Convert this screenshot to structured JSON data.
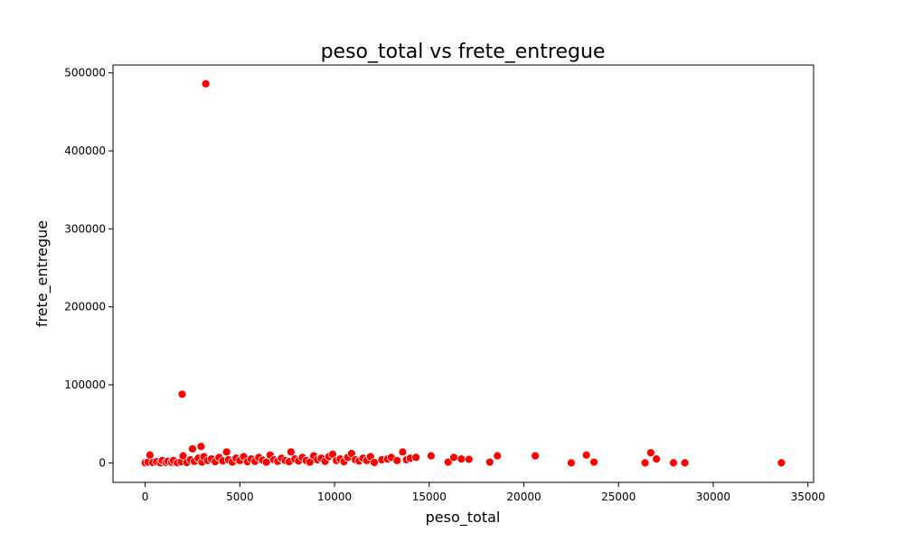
{
  "chart_data": {
    "type": "scatter",
    "title": "peso_total vs frete_entregue",
    "xlabel": "peso_total",
    "ylabel": "frete_entregue",
    "xlim": [
      -1700,
      35300
    ],
    "ylim": [
      -25000,
      510000
    ],
    "xticks": [
      0,
      5000,
      10000,
      15000,
      20000,
      25000,
      30000,
      35000
    ],
    "yticks": [
      0,
      100000,
      200000,
      300000,
      400000,
      500000
    ],
    "grid": false,
    "legend": "none",
    "point_color": "#ff0000",
    "point_edge_color": "#ffffff",
    "points": [
      [
        0,
        0
      ],
      [
        150,
        1000
      ],
      [
        250,
        10000
      ],
      [
        400,
        500
      ],
      [
        600,
        1500
      ],
      [
        800,
        0
      ],
      [
        900,
        3000
      ],
      [
        1100,
        500
      ],
      [
        1200,
        2000
      ],
      [
        1400,
        800
      ],
      [
        1500,
        3000
      ],
      [
        1700,
        200
      ],
      [
        1900,
        1500
      ],
      [
        1950,
        88000
      ],
      [
        2000,
        9000
      ],
      [
        2200,
        500
      ],
      [
        2400,
        4000
      ],
      [
        2500,
        18000
      ],
      [
        2600,
        2000
      ],
      [
        2800,
        6000
      ],
      [
        2950,
        21000
      ],
      [
        3000,
        1000
      ],
      [
        3100,
        8000
      ],
      [
        3200,
        486000
      ],
      [
        3300,
        3000
      ],
      [
        3500,
        5000
      ],
      [
        3700,
        1500
      ],
      [
        3900,
        7000
      ],
      [
        4100,
        2500
      ],
      [
        4300,
        14000
      ],
      [
        4400,
        4000
      ],
      [
        4600,
        1000
      ],
      [
        4800,
        6000
      ],
      [
        5000,
        3000
      ],
      [
        5200,
        8000
      ],
      [
        5400,
        1500
      ],
      [
        5600,
        5000
      ],
      [
        5800,
        2000
      ],
      [
        6000,
        7000
      ],
      [
        6200,
        3500
      ],
      [
        6400,
        1000
      ],
      [
        6600,
        10000
      ],
      [
        6800,
        4000
      ],
      [
        7000,
        2000
      ],
      [
        7200,
        6000
      ],
      [
        7400,
        3000
      ],
      [
        7600,
        1500
      ],
      [
        7700,
        14000
      ],
      [
        7900,
        5000
      ],
      [
        8100,
        2500
      ],
      [
        8300,
        7000
      ],
      [
        8500,
        3000
      ],
      [
        8700,
        1000
      ],
      [
        8900,
        9000
      ],
      [
        9100,
        4000
      ],
      [
        9300,
        6000
      ],
      [
        9500,
        2000
      ],
      [
        9700,
        8000
      ],
      [
        9900,
        11000
      ],
      [
        10100,
        3000
      ],
      [
        10300,
        5000
      ],
      [
        10500,
        1500
      ],
      [
        10700,
        7000
      ],
      [
        10900,
        12000
      ],
      [
        11100,
        4000
      ],
      [
        11300,
        2500
      ],
      [
        11500,
        6000
      ],
      [
        11700,
        3000
      ],
      [
        11900,
        8000
      ],
      [
        12100,
        500
      ],
      [
        12500,
        4000
      ],
      [
        12800,
        5000
      ],
      [
        13000,
        7000
      ],
      [
        13300,
        3000
      ],
      [
        13600,
        14000
      ],
      [
        13800,
        4000
      ],
      [
        14000,
        6000
      ],
      [
        14300,
        7000
      ],
      [
        15100,
        9000
      ],
      [
        16000,
        1000
      ],
      [
        16300,
        7000
      ],
      [
        16700,
        5000
      ],
      [
        17100,
        4500
      ],
      [
        18200,
        1000
      ],
      [
        18600,
        9000
      ],
      [
        20600,
        9000
      ],
      [
        22500,
        0
      ],
      [
        23300,
        10000
      ],
      [
        23700,
        1000
      ],
      [
        26400,
        0
      ],
      [
        26700,
        13000
      ],
      [
        27000,
        5000
      ],
      [
        27900,
        0
      ],
      [
        28500,
        0
      ],
      [
        33600,
        0
      ]
    ]
  }
}
